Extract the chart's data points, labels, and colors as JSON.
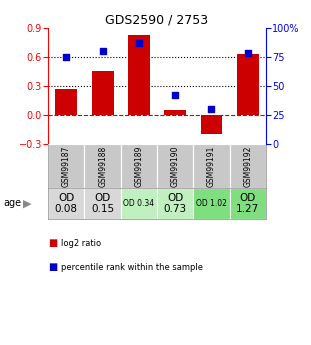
{
  "title": "GDS2590 / 2753",
  "samples": [
    "GSM99187",
    "GSM99188",
    "GSM99189",
    "GSM99190",
    "GSM99191",
    "GSM99192"
  ],
  "log2_ratio": [
    0.27,
    0.45,
    0.82,
    0.05,
    -0.2,
    0.63
  ],
  "percentile_rank": [
    75,
    80,
    87,
    42,
    30,
    78
  ],
  "bar_color": "#cc0000",
  "dot_color": "#0000cc",
  "ylim_left": [
    -0.3,
    0.9
  ],
  "ylim_right": [
    0,
    100
  ],
  "yticks_left": [
    -0.3,
    0.0,
    0.3,
    0.6,
    0.9
  ],
  "yticks_right": [
    0,
    25,
    50,
    75,
    100
  ],
  "hline_y": [
    0.3,
    0.6
  ],
  "zero_line_y": 0.0,
  "age_labels": [
    "OD\n0.08",
    "OD\n0.15",
    "OD 0.34",
    "OD\n0.73",
    "OD 1.02",
    "OD\n1.27"
  ],
  "age_bg_colors": [
    "#d8d8d8",
    "#d8d8d8",
    "#c0efc0",
    "#c0efc0",
    "#7fdf7f",
    "#7fdf7f"
  ],
  "age_fontsize_large": [
    true,
    true,
    false,
    true,
    false,
    true
  ],
  "header_bg": "#c8c8c8",
  "legend_red_label": "log2 ratio",
  "legend_blue_label": "percentile rank within the sample"
}
